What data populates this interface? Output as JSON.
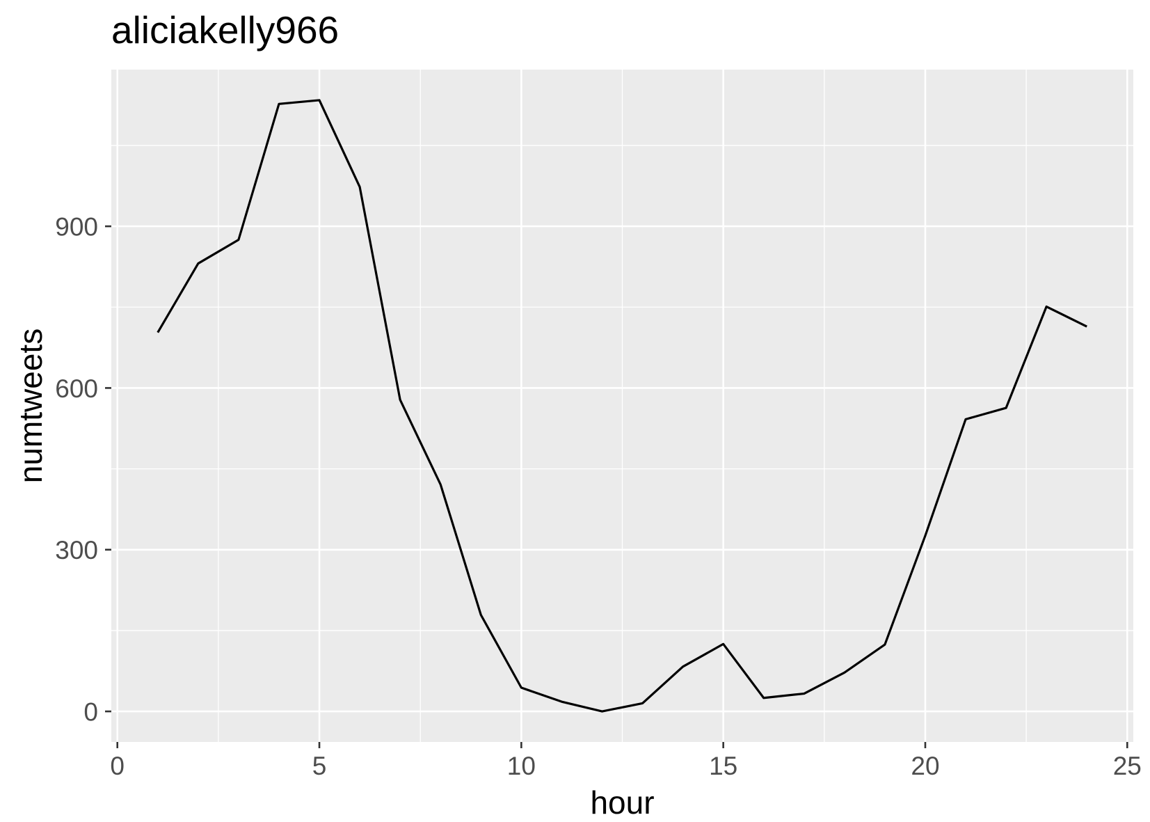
{
  "chart_data": {
    "type": "line",
    "title": "aliciakelly966",
    "xlabel": "hour",
    "ylabel": "numtweets",
    "x": [
      1,
      2,
      3,
      4,
      5,
      6,
      7,
      8,
      9,
      10,
      11,
      12,
      13,
      14,
      15,
      16,
      17,
      18,
      19,
      20,
      21,
      22,
      23,
      24
    ],
    "series": [
      {
        "values": [
          703,
          831,
          875,
          1127,
          1134,
          973,
          578,
          421,
          179,
          44,
          18,
          0,
          15,
          83,
          125,
          25,
          33,
          72,
          124,
          326,
          542,
          563,
          751,
          714
        ]
      }
    ],
    "xlim": [
      -0.15,
      25.15
    ],
    "ylim": [
      -56.7,
      1190.7
    ],
    "x_ticks": [
      0,
      5,
      10,
      15,
      20,
      25
    ],
    "y_ticks": [
      0,
      300,
      600,
      900
    ],
    "grid": true,
    "legend": "none"
  },
  "colors": {
    "background": "#FFFFFF",
    "panel_background": "#EBEBEB",
    "gridline": "#FFFFFF",
    "series_line": "#000000",
    "tick_label": "#4D4D4D",
    "axis_tick": "#333333",
    "text": "#000000"
  }
}
